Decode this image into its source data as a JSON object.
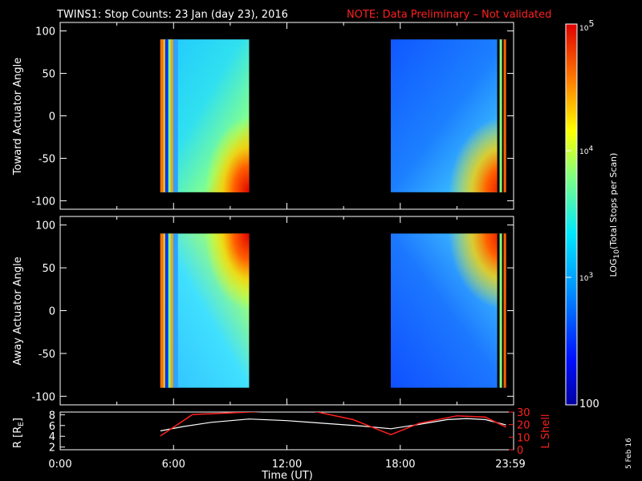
{
  "header": {
    "title": "TWINS1: Stop Counts: 23 Jan (day  23), 2016",
    "note": "NOTE: Data Preliminary – Not validated"
  },
  "chart_data": [
    {
      "type": "heatmap",
      "name": "toward",
      "ylabel": "Toward Actuator Angle",
      "ylim": [
        -110,
        110
      ],
      "yticks": [
        "100",
        "50",
        "0",
        "-50",
        "-100"
      ],
      "xlim": [
        0,
        24
      ],
      "data_intervals_ut": [
        [
          5.3,
          10.0
        ],
        [
          17.5,
          23.6
        ]
      ]
    },
    {
      "type": "heatmap",
      "name": "away",
      "ylabel": "Away Actuator Angle",
      "ylim": [
        -110,
        110
      ],
      "yticks": [
        "100",
        "50",
        "0",
        "-50",
        "-100"
      ],
      "xlim": [
        0,
        24
      ],
      "data_intervals_ut": [
        [
          5.3,
          10.0
        ],
        [
          17.5,
          23.6
        ]
      ]
    },
    {
      "type": "line",
      "name": "orbit",
      "ylabel": "R [R",
      "ylabel_sub": "E",
      "ylabel_end": "]",
      "ylim": [
        1.5,
        8.5
      ],
      "yticks": [
        "8",
        "6",
        "4",
        "2"
      ],
      "y2label": "L Shell",
      "y2lim": [
        0,
        30
      ],
      "y2ticks": [
        "30",
        "20",
        "10",
        "0"
      ],
      "xlabel": "Time (UT)",
      "xticks": [
        "0:00",
        "6:00",
        "12:00",
        "18:00",
        "23:59"
      ],
      "series": [
        {
          "color": "#ffffff",
          "x": [
            5.3,
            6.5,
            8.0,
            10.0,
            12.0,
            14.0,
            16.0,
            17.5,
            19.0,
            20.5,
            21.5,
            22.5,
            23.6
          ],
          "y": [
            5.0,
            5.8,
            6.6,
            7.2,
            6.9,
            6.4,
            5.9,
            5.4,
            6.2,
            7.1,
            7.3,
            7.1,
            6.1
          ]
        },
        {
          "color": "#ff2020",
          "axis": "y2",
          "x": [
            5.3,
            6.2,
            7.0,
            13.0,
            15.5,
            17.5,
            19.0,
            21.0,
            22.5,
            23.6
          ],
          "y": [
            11,
            20,
            28,
            32,
            24,
            12,
            21,
            27,
            26,
            18
          ]
        }
      ]
    }
  ],
  "colorbar": {
    "label_prefix": "LOG",
    "label_sub": "10",
    "label_suffix": "(Total Stops per Scan)",
    "top_base": "10",
    "top_exp": "5",
    "mid_base": "10",
    "mid_exp": "4",
    "low_base": "10",
    "low_exp": "3",
    "bottom": "100",
    "range": [
      100,
      100000
    ]
  },
  "footer": {
    "date": "5 Feb 16"
  }
}
